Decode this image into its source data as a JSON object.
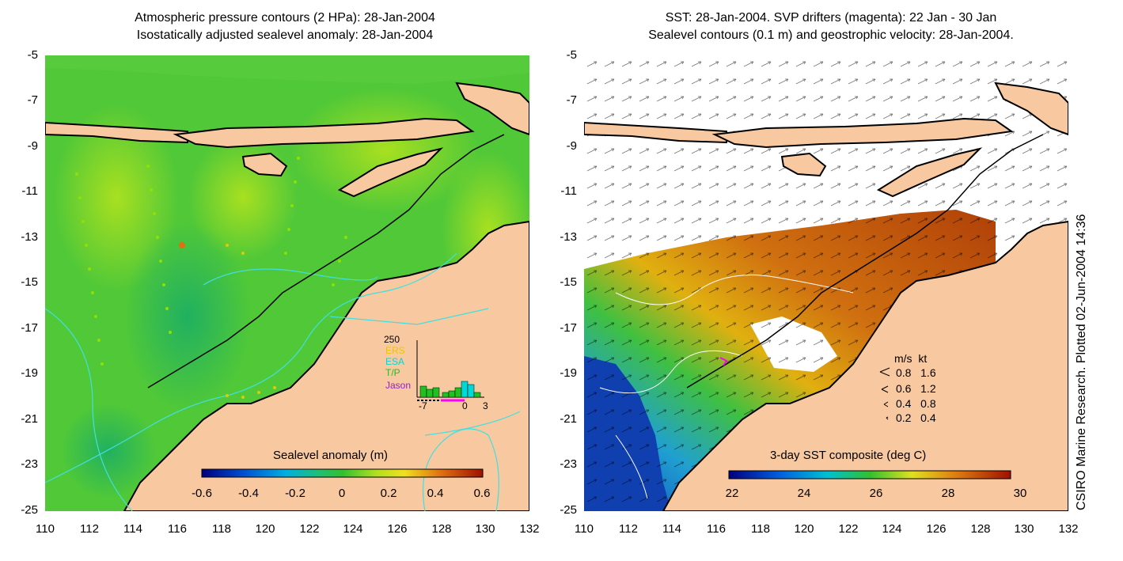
{
  "left_panel": {
    "title_line1": "Atmospheric pressure contours (2 HPa): 28-Jan-2004",
    "title_line2": "Isostatically adjusted sealevel anomaly: 28-Jan-2004",
    "colorbar_title": "Sealevel anomaly (m)",
    "colorbar_ticks": [
      "-0.6",
      "-0.4",
      "-0.2",
      "0",
      "0.2",
      "0.4",
      "0.6"
    ],
    "inset": {
      "ymax_label": "250",
      "legend": [
        {
          "label": "ERS",
          "color": "#e6c800"
        },
        {
          "label": "ESA",
          "color": "#00d8d8"
        },
        {
          "label": "T/P",
          "color": "#20c020"
        },
        {
          "label": "Jason",
          "color": "#9020d0"
        }
      ],
      "x_labels": [
        "-7",
        "0",
        "3"
      ]
    }
  },
  "right_panel": {
    "title_line1": "SST: 28-Jan-2004. SVP drifters (magenta): 22 Jan - 30 Jan",
    "title_line2": "Sealevel contours (0.1 m) and geostrophic velocity: 28-Jan-2004.",
    "colorbar_title": "3-day SST composite (deg C)",
    "colorbar_ticks": [
      "22",
      "24",
      "26",
      "28",
      "30"
    ],
    "velocity_legend": {
      "header_ms": "m/s",
      "header_kt": "kt",
      "rows": [
        {
          "ms": "0.8",
          "kt": "1.6"
        },
        {
          "ms": "0.6",
          "kt": "1.2"
        },
        {
          "ms": "0.4",
          "kt": "0.8"
        },
        {
          "ms": "0.2",
          "kt": "0.4"
        }
      ]
    }
  },
  "axes": {
    "y_labels": [
      "-5",
      "-7",
      "-9",
      "-11",
      "-13",
      "-15",
      "-17",
      "-19",
      "-21",
      "-23",
      "-25"
    ],
    "x_labels": [
      "110",
      "112",
      "114",
      "116",
      "118",
      "120",
      "122",
      "124",
      "126",
      "128",
      "130",
      "132"
    ]
  },
  "credit": "CSIRO Marine Research. Plotted 02-Jun-2004 14:36",
  "colors": {
    "land": "#f8c8a0",
    "sea_green": "#40c040",
    "sst_orange": "#d08010",
    "coast": "#000000",
    "contour": "#40e0e0"
  }
}
